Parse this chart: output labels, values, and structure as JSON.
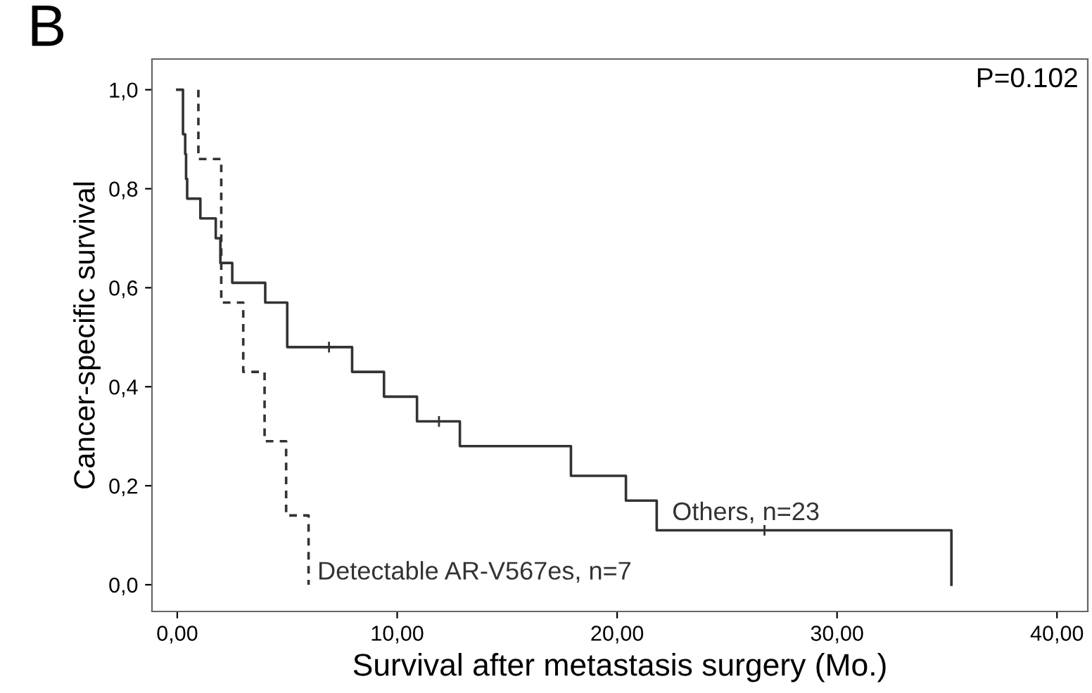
{
  "chart_data": {
    "type": "step",
    "title": "B",
    "xlabel": "Survival after metastasis surgery (Mo.)",
    "ylabel": "Cancer-specific survival",
    "series": [
      {
        "name": "Others, n=23",
        "color": "#333333",
        "line_style": "solid",
        "x": [
          0,
          0.26,
          0.36,
          0.4,
          0.45,
          1.05,
          1.75,
          1.96,
          2.5,
          4.0,
          5.0,
          7.95,
          9.4,
          10.9,
          12.85,
          17.9,
          20.4,
          21.8,
          35.2
        ],
        "values": [
          1.0,
          0.91,
          0.87,
          0.82,
          0.78,
          0.74,
          0.7,
          0.65,
          0.61,
          0.57,
          0.48,
          0.43,
          0.38,
          0.33,
          0.28,
          0.22,
          0.17,
          0.11,
          0.0
        ]
      },
      {
        "name": "Detectable AR-V567es, n=7",
        "color": "#333333",
        "line_style": "dashed",
        "x": [
          0.96,
          0.96,
          2.0,
          3.0,
          3.97,
          4.95,
          5.97
        ],
        "values": [
          1.0,
          0.86,
          0.57,
          0.43,
          0.29,
          0.14,
          0.0
        ]
      },
      {
        "type": "scatter",
        "color": "#333333",
        "marker": "cross",
        "x": [
          6.9,
          11.9,
          26.7
        ],
        "values": [
          0.48,
          0.33,
          0.11
        ]
      }
    ],
    "annotations": [
      "P=0.102"
    ],
    "xlim": [
      -1.15,
      41.4
    ],
    "ylim": [
      -0.054,
      1.062
    ],
    "xticks": [
      {
        "value": 0,
        "label": "0,00"
      },
      {
        "value": 10,
        "label": "10,00"
      },
      {
        "value": 20,
        "label": "20,00"
      },
      {
        "value": 30,
        "label": "30,00"
      },
      {
        "value": 40,
        "label": "40,00"
      }
    ],
    "yticks": [
      {
        "value": 0,
        "label": "0,0"
      },
      {
        "value": 0.2,
        "label": "0,2"
      },
      {
        "value": 0.4,
        "label": "0,4"
      },
      {
        "value": 0.6,
        "label": "0,6"
      },
      {
        "value": 0.8,
        "label": "0,8"
      },
      {
        "value": 1.0,
        "label": "1,0"
      }
    ],
    "grid": false,
    "legend": false
  }
}
